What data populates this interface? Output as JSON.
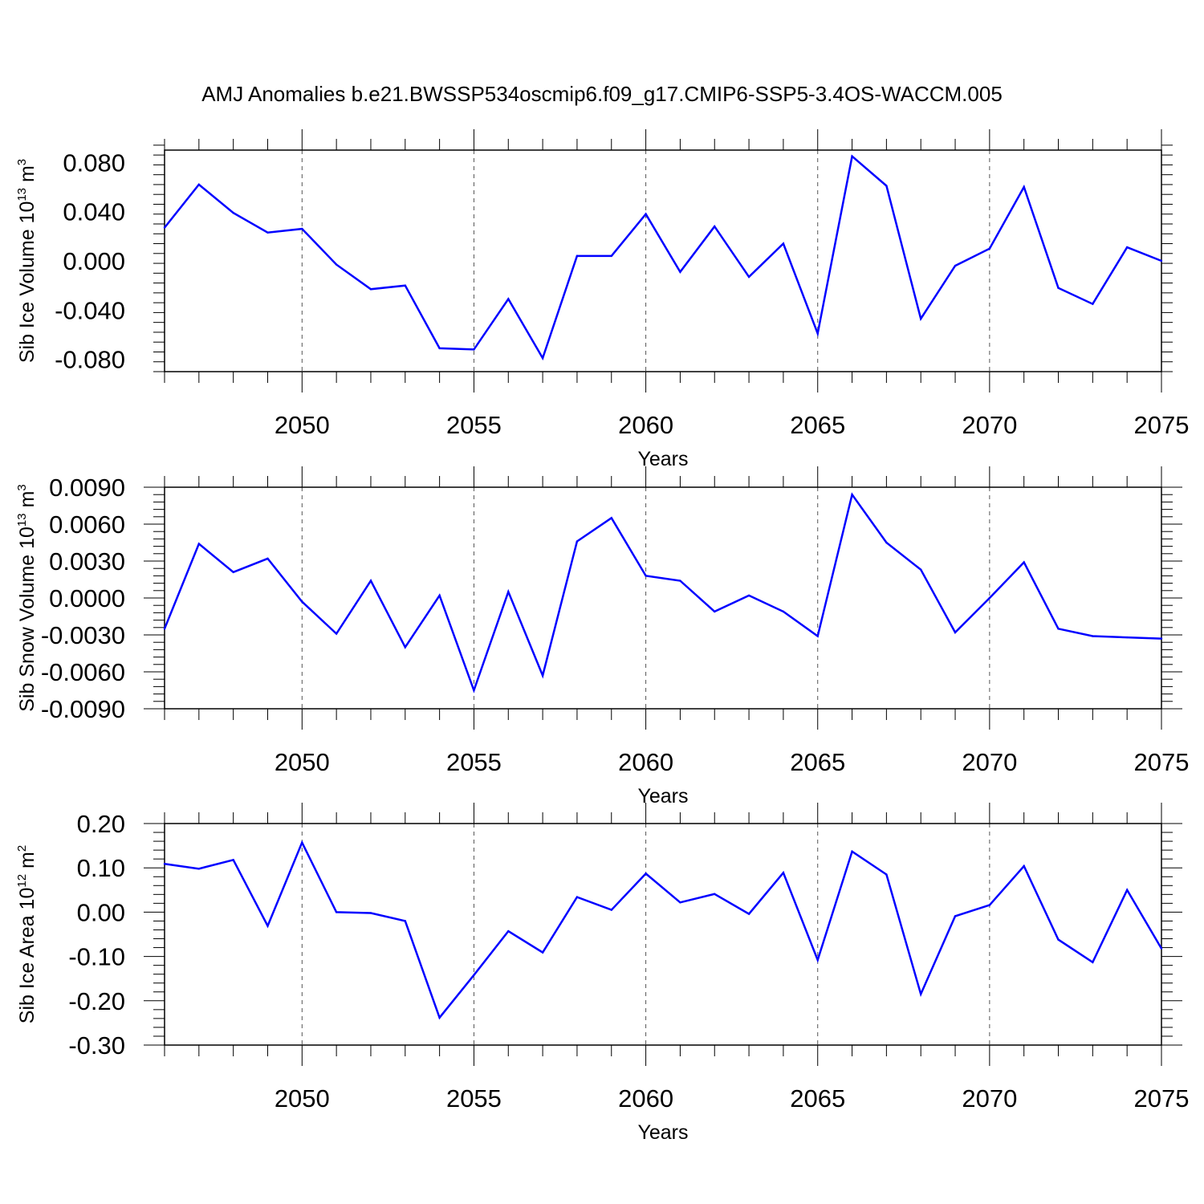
{
  "title": "AMJ Anomalies b.e21.BWSSP534oscmip6.f09_g17.CMIP6-SSP5-3.4OS-WACCM.005",
  "line_color": "#0000ff",
  "chart_data": [
    {
      "type": "line",
      "xlabel": "Years",
      "ylabel_main": "Sib Ice Volume 10",
      "ylabel_exp1": "13",
      "ylabel_unit": " m",
      "ylabel_exp2": "3",
      "xlim": [
        2046,
        2075
      ],
      "ylim": [
        -0.09,
        0.09
      ],
      "xticks": [
        "2050",
        "2055",
        "2060",
        "2065",
        "2070",
        "2075"
      ],
      "yticks": [
        "0.080",
        "0.040",
        "0.000",
        "-0.040",
        "-0.080"
      ],
      "x": [
        2046,
        2047,
        2048,
        2049,
        2050,
        2051,
        2052,
        2053,
        2054,
        2055,
        2056,
        2057,
        2058,
        2059,
        2060,
        2061,
        2062,
        2063,
        2064,
        2065,
        2066,
        2067,
        2068,
        2069,
        2070,
        2071,
        2072,
        2073,
        2074,
        2075
      ],
      "values": [
        0.027,
        0.062,
        0.039,
        0.023,
        0.026,
        -0.003,
        -0.023,
        -0.02,
        -0.071,
        -0.072,
        -0.031,
        -0.079,
        0.004,
        0.004,
        0.038,
        -0.009,
        0.028,
        -0.013,
        0.014,
        -0.059,
        0.085,
        0.061,
        -0.047,
        -0.004,
        0.01,
        0.06,
        -0.022,
        -0.035,
        0.011,
        0.0
      ]
    },
    {
      "type": "line",
      "xlabel": "Years",
      "ylabel_main": "Sib Snow Volume 10",
      "ylabel_exp1": "13",
      "ylabel_unit": " m",
      "ylabel_exp2": "3",
      "xlim": [
        2046,
        2075
      ],
      "ylim": [
        -0.009,
        0.009
      ],
      "xticks": [
        "2050",
        "2055",
        "2060",
        "2065",
        "2070",
        "2075"
      ],
      "yticks": [
        "0.0090",
        "0.0060",
        "0.0030",
        "0.0000",
        "-0.0030",
        "-0.0060",
        "-0.0090"
      ],
      "x": [
        2046,
        2047,
        2048,
        2049,
        2050,
        2051,
        2052,
        2053,
        2054,
        2055,
        2056,
        2057,
        2058,
        2059,
        2060,
        2061,
        2062,
        2063,
        2064,
        2065,
        2066,
        2067,
        2068,
        2069,
        2070,
        2071,
        2072,
        2073,
        2074,
        2075
      ],
      "values": [
        -0.0025,
        0.0044,
        0.0021,
        0.0032,
        -0.0003,
        -0.0029,
        0.0014,
        -0.004,
        0.0002,
        -0.0075,
        0.0005,
        -0.0063,
        0.0046,
        0.0065,
        0.0018,
        0.0014,
        -0.0011,
        0.0002,
        -0.0011,
        -0.0031,
        0.0084,
        0.0045,
        0.0023,
        -0.0028,
        0.0,
        0.0029,
        -0.0025,
        -0.0031,
        -0.0032,
        -0.0033
      ]
    },
    {
      "type": "line",
      "xlabel": "Years",
      "ylabel_main": "Sib Ice Area 10",
      "ylabel_exp1": "12",
      "ylabel_unit": " m",
      "ylabel_exp2": "2",
      "xlim": [
        2046,
        2075
      ],
      "ylim": [
        -0.3,
        0.2
      ],
      "xticks": [
        "2050",
        "2055",
        "2060",
        "2065",
        "2070",
        "2075"
      ],
      "yticks": [
        "0.20",
        "0.10",
        "0.00",
        "-0.10",
        "-0.20",
        "-0.30"
      ],
      "x": [
        2046,
        2047,
        2048,
        2049,
        2050,
        2051,
        2052,
        2053,
        2054,
        2055,
        2056,
        2057,
        2058,
        2059,
        2060,
        2061,
        2062,
        2063,
        2064,
        2065,
        2066,
        2067,
        2068,
        2069,
        2070,
        2071,
        2072,
        2073,
        2074,
        2075
      ],
      "values": [
        0.109,
        0.098,
        0.118,
        -0.031,
        0.157,
        0.0,
        -0.002,
        -0.02,
        -0.238,
        -0.142,
        -0.043,
        -0.091,
        0.034,
        0.005,
        0.087,
        0.022,
        0.041,
        -0.004,
        0.089,
        -0.108,
        0.137,
        0.085,
        -0.185,
        -0.009,
        0.016,
        0.104,
        -0.062,
        -0.113,
        0.05,
        -0.082
      ]
    }
  ]
}
